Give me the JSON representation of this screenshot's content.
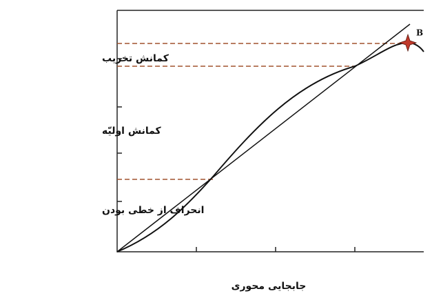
{
  "y_labels": [
    "کمانش تخریب",
    "کمانش اولیّه",
    "انحراف از خطی بودن"
  ],
  "x_label": "جابجایی محوری",
  "point_label": "B"
}
